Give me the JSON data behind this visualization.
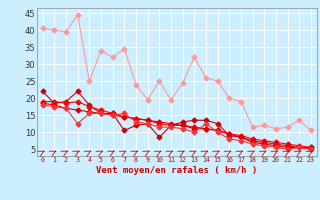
{
  "xlabel": "Vent moyen/en rafales ( km/h )",
  "background_color": "#cceeff",
  "grid_color": "#ffffff",
  "x": [
    0,
    1,
    2,
    3,
    4,
    5,
    6,
    7,
    8,
    9,
    10,
    11,
    12,
    13,
    14,
    15,
    16,
    17,
    18,
    19,
    20,
    21,
    22,
    23
  ],
  "series": [
    {
      "y": [
        40.5,
        40.0,
        39.5,
        44.5,
        25.0,
        34.0,
        32.0,
        34.5,
        24.0,
        19.5,
        25.0,
        19.5,
        24.5,
        32.0,
        26.0,
        25.0,
        20.0,
        19.0,
        11.5,
        12.0,
        11.0,
        11.5,
        13.5,
        10.5
      ],
      "color": "#ff9999",
      "marker": "D",
      "markersize": 2.5,
      "linewidth": 0.8
    },
    {
      "y": [
        22.0,
        18.5,
        19.0,
        22.0,
        18.0,
        15.5,
        15.5,
        10.5,
        12.0,
        12.5,
        8.5,
        12.0,
        13.0,
        13.5,
        13.5,
        12.5,
        9.0,
        8.5,
        7.0,
        6.5,
        6.0,
        5.5,
        5.5,
        5.0
      ],
      "color": "#cc0000",
      "marker": "D",
      "markersize": 2.5,
      "linewidth": 0.8
    },
    {
      "y": [
        19.0,
        19.0,
        18.5,
        19.0,
        17.5,
        16.5,
        15.5,
        14.5,
        14.0,
        13.5,
        12.5,
        12.0,
        12.0,
        11.5,
        11.0,
        10.5,
        9.5,
        9.0,
        8.0,
        7.5,
        7.0,
        6.5,
        6.0,
        5.5
      ],
      "color": "#ff0000",
      "marker": "D",
      "markersize": 2.5,
      "linewidth": 0.8
    },
    {
      "y": [
        18.5,
        18.0,
        17.0,
        16.5,
        16.0,
        15.5,
        15.0,
        14.5,
        14.0,
        13.5,
        13.0,
        12.5,
        12.0,
        11.0,
        11.0,
        10.5,
        9.5,
        8.5,
        7.5,
        7.0,
        6.5,
        6.0,
        5.5,
        5.5
      ],
      "color": "#dd0000",
      "marker": "D",
      "markersize": 2.5,
      "linewidth": 0.8
    },
    {
      "y": [
        18.0,
        17.5,
        17.0,
        12.5,
        15.5,
        15.5,
        15.0,
        15.5,
        13.0,
        12.5,
        11.5,
        11.5,
        11.0,
        10.0,
        12.5,
        10.0,
        8.0,
        7.5,
        6.5,
        6.0,
        5.5,
        5.0,
        5.5,
        5.0
      ],
      "color": "#ff3333",
      "marker": "D",
      "markersize": 2.5,
      "linewidth": 0.8
    }
  ],
  "ylim": [
    3.0,
    46.5
  ],
  "yticks": [
    5,
    10,
    15,
    20,
    25,
    30,
    35,
    40,
    45
  ],
  "xlim": [
    -0.5,
    23.5
  ]
}
